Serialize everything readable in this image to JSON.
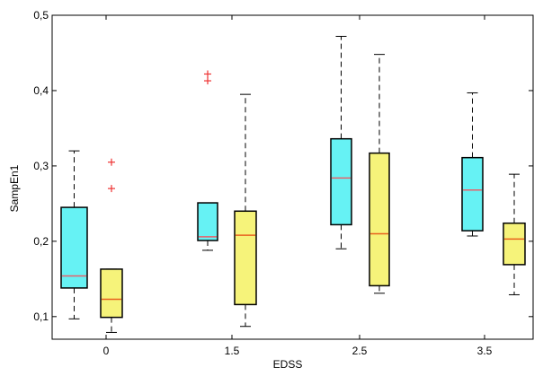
{
  "chart_data": {
    "type": "box",
    "xlabel": "EDSS",
    "ylabel": "SampEn1",
    "ylim": [
      0.07,
      0.5
    ],
    "grid": false,
    "legend": "none",
    "categories": [
      "0",
      "1.5",
      "2.5",
      "3.5"
    ],
    "yticks": [
      "0,1",
      "0,2",
      "0,3",
      "0,4",
      "0,5"
    ],
    "series": [
      {
        "color": "#66F2F4",
        "median_color": "#E8606A",
        "boxes": [
          {
            "category": "0",
            "whisker_low": 0.097,
            "q1": 0.138,
            "median": 0.154,
            "q3": 0.245,
            "whisker_high": 0.32,
            "outliers": []
          },
          {
            "category": "1.5",
            "whisker_low": 0.188,
            "q1": 0.201,
            "median": 0.206,
            "q3": 0.251,
            "whisker_high": 0.251,
            "outliers": [
              0.413,
              0.422
            ]
          },
          {
            "category": "2.5",
            "whisker_low": 0.19,
            "q1": 0.222,
            "median": 0.284,
            "q3": 0.336,
            "whisker_high": 0.472,
            "outliers": []
          },
          {
            "category": "3.5",
            "whisker_low": 0.207,
            "q1": 0.214,
            "median": 0.268,
            "q3": 0.311,
            "whisker_high": 0.397,
            "outliers": []
          }
        ]
      },
      {
        "color": "#F6F37A",
        "median_color": "#E8601E",
        "boxes": [
          {
            "category": "0",
            "whisker_low": 0.079,
            "q1": 0.099,
            "median": 0.123,
            "q3": 0.163,
            "whisker_high": 0.163,
            "outliers": [
              0.27,
              0.305
            ]
          },
          {
            "category": "1.5",
            "whisker_low": 0.087,
            "q1": 0.116,
            "median": 0.208,
            "q3": 0.24,
            "whisker_high": 0.395,
            "outliers": []
          },
          {
            "category": "2.5",
            "whisker_low": 0.131,
            "q1": 0.141,
            "median": 0.21,
            "q3": 0.317,
            "whisker_high": 0.448,
            "outliers": []
          },
          {
            "category": "3.5",
            "whisker_low": 0.129,
            "q1": 0.169,
            "median": 0.203,
            "q3": 0.224,
            "whisker_high": 0.289,
            "outliers": []
          }
        ]
      }
    ]
  }
}
